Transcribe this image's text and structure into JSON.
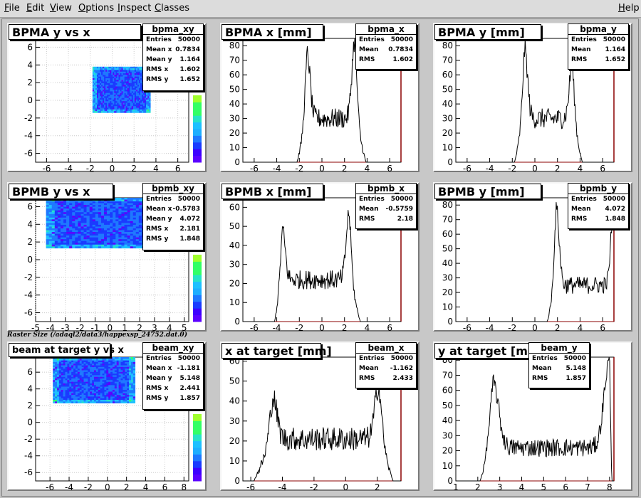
{
  "menu": {
    "file": "File",
    "edit": "Edit",
    "view": "View",
    "options": "Options",
    "inspect": "Inspect",
    "classes": "Classes",
    "help": "Help"
  },
  "raster_label": "Raster Size (/adaql2/data3/happexsp_24752.dat.0)",
  "colors": {
    "hist_line": "#000000",
    "frame_right": "#8b0000",
    "grid": "#cccccc"
  },
  "stats": {
    "bpma_xy": {
      "name": "bpma_xy",
      "rows": [
        [
          "Entries",
          "50000"
        ],
        [
          "Mean x",
          "0.7834"
        ],
        [
          "Mean y",
          "1.164"
        ],
        [
          "RMS x",
          "1.602"
        ],
        [
          "RMS y",
          "1.652"
        ]
      ]
    },
    "bpma_x": {
      "name": "bpma_x",
      "rows": [
        [
          "Entries",
          "50000"
        ],
        [
          "Mean",
          "0.7834"
        ],
        [
          "RMS",
          "1.602"
        ]
      ]
    },
    "bpma_y": {
      "name": "bpma_y",
      "rows": [
        [
          "Entries",
          "50000"
        ],
        [
          "Mean",
          "1.164"
        ],
        [
          "RMS",
          "1.652"
        ]
      ]
    },
    "bpmb_xy": {
      "name": "bpmb_xy",
      "rows": [
        [
          "Entries",
          "50000"
        ],
        [
          "Mean x",
          "-0.5783"
        ],
        [
          "Mean y",
          "4.072"
        ],
        [
          "RMS x",
          "2.181"
        ],
        [
          "RMS y",
          "1.848"
        ]
      ]
    },
    "bpmb_x": {
      "name": "bpmb_x",
      "rows": [
        [
          "Entries",
          "50000"
        ],
        [
          "Mean",
          "-0.5759"
        ],
        [
          "RMS",
          "2.18"
        ]
      ]
    },
    "bpmb_y": {
      "name": "bpmb_y",
      "rows": [
        [
          "Entries",
          "50000"
        ],
        [
          "Mean",
          "4.072"
        ],
        [
          "RMS",
          "1.848"
        ]
      ]
    },
    "beam_xy": {
      "name": "beam_xy",
      "rows": [
        [
          "Entries",
          "50000"
        ],
        [
          "Mean x",
          "-1.181"
        ],
        [
          "Mean y",
          "5.148"
        ],
        [
          "RMS x",
          "2.441"
        ],
        [
          "RMS y",
          "1.857"
        ]
      ]
    },
    "beam_x": {
      "name": "beam_x",
      "rows": [
        [
          "Entries",
          "50000"
        ],
        [
          "Mean",
          "-1.162"
        ],
        [
          "RMS",
          "2.433"
        ]
      ]
    },
    "beam_y": {
      "name": "beam_y",
      "rows": [
        [
          "Entries",
          "50000"
        ],
        [
          "Mean",
          "5.148"
        ],
        [
          "RMS",
          "1.857"
        ]
      ]
    }
  },
  "chart_data": [
    {
      "id": "bpma_xy",
      "type": "heatmap",
      "title": "BPMA y vs x",
      "xlim": [
        -7,
        7
      ],
      "ylim": [
        -7,
        7
      ],
      "xticks": [
        "-6",
        "-4",
        "-2",
        "0",
        "2",
        "4",
        "6"
      ],
      "yticks": [
        "-6",
        "-4",
        "-2",
        "0",
        "2",
        "4",
        "6"
      ],
      "region": {
        "x": [
          -1.8,
          3.5
        ],
        "y": [
          -1.4,
          3.8
        ]
      },
      "colorbar": {
        "max": 20,
        "ticks": [
          "0",
          "5",
          "10",
          "15",
          "20"
        ]
      }
    },
    {
      "id": "bpma_x",
      "type": "line",
      "title": "BPMA x [mm]",
      "xlim": [
        -7,
        7
      ],
      "ylim": [
        0,
        85
      ],
      "xticks": [
        "-6",
        "-4",
        "-2",
        "0",
        "2",
        "4",
        "6"
      ],
      "yticks": [
        "0",
        "10",
        "20",
        "30",
        "40",
        "50",
        "60",
        "70",
        "80"
      ],
      "profile": {
        "lo": -2.2,
        "hi": 3.9,
        "peakL": -1.3,
        "peakR": 2.9,
        "hL": 75,
        "hR": 83,
        "mid": 30,
        "noise": 14
      }
    },
    {
      "id": "bpma_y",
      "type": "line",
      "title": "BPMA y [mm]",
      "xlim": [
        -7,
        7
      ],
      "ylim": [
        0,
        85
      ],
      "xticks": [
        "-6",
        "-4",
        "-2",
        "0",
        "2",
        "4",
        "6"
      ],
      "yticks": [
        "0",
        "10",
        "20",
        "30",
        "40",
        "50",
        "60",
        "70",
        "80"
      ],
      "profile": {
        "lo": -1.8,
        "hi": 4.2,
        "peakL": -0.9,
        "peakR": 3.3,
        "hL": 78,
        "hR": 67,
        "mid": 30,
        "noise": 14
      }
    },
    {
      "id": "bpmb_xy",
      "type": "heatmap",
      "title": "BPMB y vs x",
      "xlim": [
        -5,
        5.3
      ],
      "ylim": [
        -7,
        7
      ],
      "xticks": [
        "-5",
        "-4",
        "-3",
        "-2",
        "-1",
        "0",
        "1",
        "2",
        "3",
        "4",
        "5"
      ],
      "yticks": [
        "-6",
        "-4",
        "-2",
        "0",
        "2",
        "4",
        "6"
      ],
      "region": {
        "x": [
          -4.3,
          3.5
        ],
        "y": [
          1.3,
          7
        ]
      },
      "colorbar": {
        "max": 20,
        "ticks": [
          "0",
          "5",
          "10",
          "15",
          "20"
        ]
      }
    },
    {
      "id": "bpmb_x",
      "type": "line",
      "title": "BPMB x [mm]",
      "xlim": [
        -7,
        7
      ],
      "ylim": [
        0,
        65
      ],
      "xticks": [
        "-6",
        "-4",
        "-2",
        "0",
        "2",
        "4",
        "6"
      ],
      "yticks": [
        "0",
        "10",
        "20",
        "30",
        "40",
        "50",
        "60"
      ],
      "profile": {
        "lo": -4.2,
        "hi": 3.4,
        "peakL": -3.5,
        "peakR": 2.4,
        "hL": 48,
        "hR": 57,
        "mid": 22,
        "noise": 10
      }
    },
    {
      "id": "bpmb_y",
      "type": "line",
      "title": "BPMB y [mm]",
      "xlim": [
        -7,
        7
      ],
      "ylim": [
        0,
        85
      ],
      "xticks": [
        "-6",
        "-4",
        "-2",
        "0",
        "2",
        "4",
        "6"
      ],
      "yticks": [
        "0",
        "10",
        "20",
        "30",
        "40",
        "50",
        "60",
        "70",
        "80"
      ],
      "profile": {
        "lo": 1.1,
        "hi": 7.2,
        "peakL": 1.9,
        "peakR": 7,
        "hL": 78,
        "hR": 82,
        "mid": 25,
        "noise": 12
      }
    },
    {
      "id": "beam_xy",
      "type": "heatmap",
      "title": "beam at target y vs x",
      "xlim": [
        -7.5,
        8.5
      ],
      "ylim": [
        -7,
        7.8
      ],
      "xticks": [
        "-6",
        "-4",
        "-2",
        "0",
        "2",
        "4",
        "6",
        "8"
      ],
      "yticks": [
        "-6",
        "-4",
        "-2",
        "0",
        "2",
        "4",
        "6"
      ],
      "region": {
        "x": [
          -5.7,
          2.9
        ],
        "y": [
          2.3,
          7.8
        ]
      },
      "colorbar": {
        "max": 15,
        "ticks": [
          "0",
          "5",
          "10",
          "15"
        ]
      }
    },
    {
      "id": "beam_x",
      "type": "line",
      "title": "x at target [mm]",
      "xlim": [
        -6.5,
        3.5
      ],
      "ylim": [
        0,
        62
      ],
      "xticks": [
        "-6",
        "-4",
        "-2",
        "0",
        "2"
      ],
      "yticks": [
        "0",
        "10",
        "20",
        "30",
        "40",
        "50",
        "60"
      ],
      "profile": {
        "lo": -5.8,
        "hi": 3,
        "peakL": -4.6,
        "peakR": 2.1,
        "hL": 42,
        "hR": 48,
        "mid": 21,
        "noise": 12
      }
    },
    {
      "id": "beam_y",
      "type": "line",
      "title": "y at target [mm]",
      "xlim": [
        1,
        8.2
      ],
      "ylim": [
        0,
        82
      ],
      "xticks": [
        "1",
        "2",
        "3",
        "4",
        "5",
        "6",
        "7",
        "8"
      ],
      "yticks": [
        "0",
        "10",
        "20",
        "30",
        "40",
        "50",
        "60",
        "70",
        "80"
      ],
      "profile": {
        "lo": 2.1,
        "hi": 8.1,
        "peakL": 2.7,
        "peakR": 8,
        "hL": 65,
        "hR": 80,
        "mid": 22,
        "noise": 12
      }
    }
  ]
}
